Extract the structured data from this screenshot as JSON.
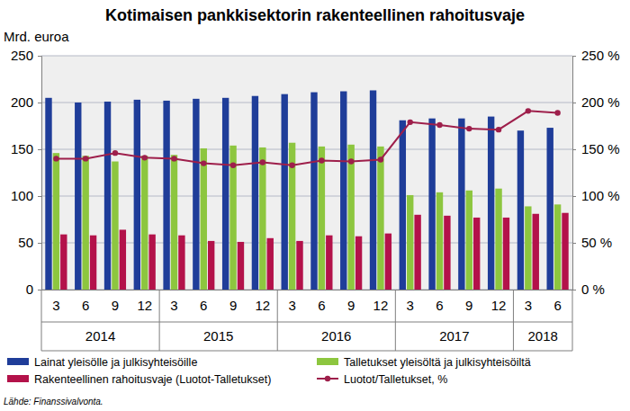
{
  "chart_data": {
    "type": "bar",
    "title": "Kotimaisen pankkisektorin rakenteellinen rahoitusvaje",
    "y_label": "Mrd. euroa",
    "source": "Lähde: Finanssivalvonta.",
    "categories": [
      "3",
      "6",
      "9",
      "12",
      "3",
      "6",
      "9",
      "12",
      "3",
      "6",
      "9",
      "12",
      "3",
      "6",
      "9",
      "12",
      "3",
      "6"
    ],
    "category_groups": [
      "2014",
      "2014",
      "2014",
      "2014",
      "2015",
      "2015",
      "2015",
      "2015",
      "2016",
      "2016",
      "2016",
      "2016",
      "2017",
      "2017",
      "2017",
      "2017",
      "2018",
      "2018"
    ],
    "series": [
      {
        "name": "Lainat yleisölle ja julkisyhteisöille",
        "type": "bar",
        "color": "#1f3d99",
        "values": [
          205,
          200,
          201,
          203,
          202,
          204,
          205,
          207,
          209,
          211,
          212,
          213,
          181,
          183,
          183,
          185,
          170,
          173
        ]
      },
      {
        "name": "Talletukset yleisöltä ja julkisyhteisöiltä",
        "type": "bar",
        "color": "#8dc63f",
        "values": [
          146,
          143,
          137,
          143,
          144,
          151,
          154,
          152,
          157,
          153,
          155,
          153,
          101,
          104,
          106,
          108,
          89,
          91
        ]
      },
      {
        "name": "Rakenteellinen rahoitusvaje (Luotot-Talletukset)",
        "type": "bar",
        "color": "#b3124a",
        "values": [
          59,
          58,
          64,
          59,
          58,
          52,
          51,
          55,
          52,
          58,
          57,
          60,
          80,
          79,
          77,
          77,
          81,
          82
        ]
      },
      {
        "name": "Luotot/Talletukset, %",
        "type": "line",
        "axis": "y2",
        "color": "#9e1f4b",
        "marker": "circle",
        "line_style": "solid",
        "values": [
          140,
          140,
          146,
          141,
          140,
          135,
          133,
          136,
          133,
          138,
          137,
          139,
          179,
          176,
          172,
          171,
          191,
          189
        ]
      }
    ],
    "ylim": [
      0,
      250
    ],
    "yticks": [
      0,
      50,
      100,
      150,
      200,
      250
    ],
    "y2lim": [
      0,
      250
    ],
    "y2ticks": [
      {
        "value": 0,
        "label": "0 %"
      },
      {
        "value": 50,
        "label": "50 %"
      },
      {
        "value": 100,
        "label": "100 %"
      },
      {
        "value": 150,
        "label": "150 %"
      },
      {
        "value": 200,
        "label": "200 %"
      },
      {
        "value": 250,
        "label": "250 %"
      }
    ],
    "grid": true
  }
}
